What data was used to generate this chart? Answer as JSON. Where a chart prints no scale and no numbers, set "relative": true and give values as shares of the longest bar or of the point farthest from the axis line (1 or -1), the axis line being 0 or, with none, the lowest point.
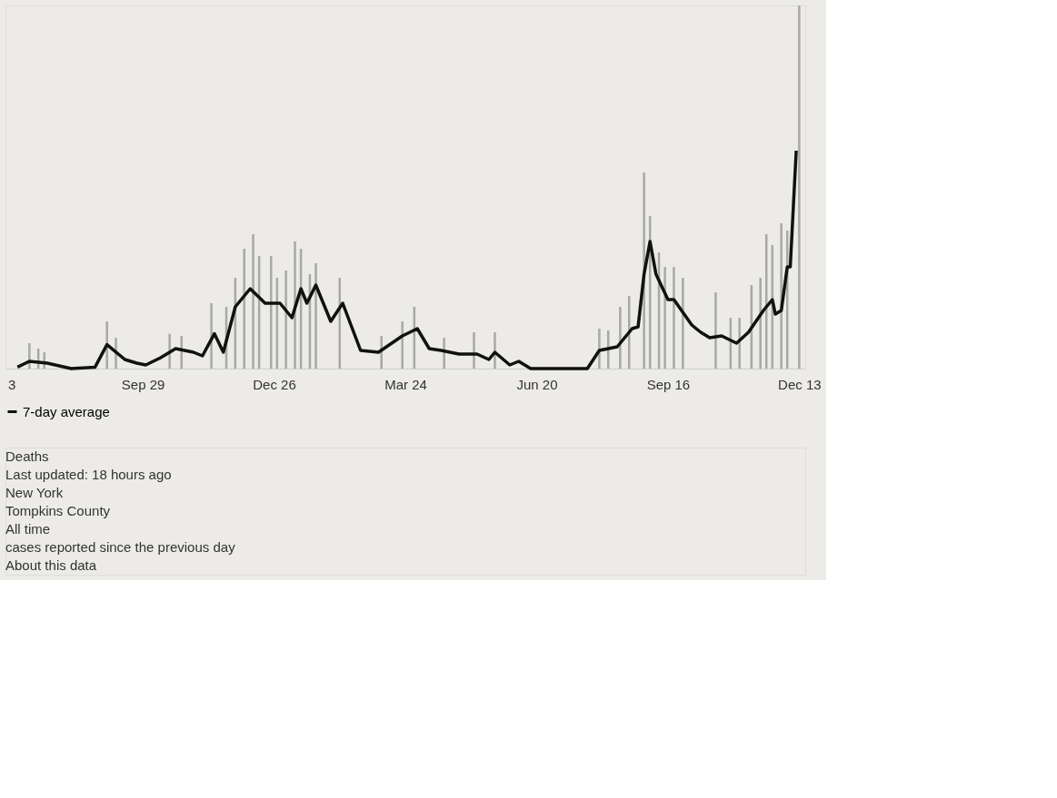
{
  "chart_data": {
    "type": "bar",
    "relative": true,
    "categories": [
      "3",
      null,
      null,
      null,
      null,
      null,
      null,
      null,
      null,
      null,
      null,
      null,
      null,
      null,
      null,
      null,
      null,
      null,
      null,
      null,
      null,
      null,
      null,
      null,
      null,
      null,
      null,
      null,
      null,
      null,
      null,
      null,
      null,
      null,
      null,
      null,
      null,
      null,
      null,
      null,
      null,
      null,
      null,
      null,
      "Sep 29",
      null,
      null,
      null,
      null,
      null,
      null,
      null,
      null,
      null,
      null,
      null,
      null,
      null,
      null,
      null,
      null,
      null,
      null,
      null,
      null,
      null,
      null,
      null,
      null,
      null,
      null,
      null,
      null,
      null,
      null,
      null,
      null,
      null,
      null,
      null,
      null,
      null,
      null,
      null,
      null,
      null,
      null,
      null,
      "Dec 26",
      null,
      null,
      null,
      null,
      null,
      null,
      null,
      null,
      null,
      null,
      null,
      null,
      null,
      null,
      null,
      null,
      null,
      null,
      null,
      null,
      null,
      null,
      null,
      null,
      null,
      null,
      null,
      null,
      null,
      null,
      null,
      null,
      null,
      null,
      null,
      null,
      null,
      null,
      null,
      null,
      null,
      null,
      null,
      "Mar 24",
      null,
      null,
      null,
      null,
      null,
      null,
      null,
      null,
      null,
      null,
      null,
      null,
      null,
      null,
      null,
      null,
      null,
      null,
      null,
      null,
      null,
      null,
      null,
      null,
      null,
      null,
      null,
      null,
      null,
      null,
      null,
      null,
      null,
      null,
      null,
      null,
      null,
      null,
      null,
      null,
      null,
      null,
      null,
      "Jun 20",
      null,
      null,
      null,
      null,
      null,
      null,
      null,
      null,
      null,
      null,
      null,
      null,
      null,
      null,
      null,
      null,
      null,
      null,
      null,
      null,
      null,
      null,
      null,
      null,
      null,
      null,
      null,
      null,
      null,
      null,
      null,
      null,
      null,
      null,
      null,
      null,
      null,
      null,
      null,
      null,
      null,
      null,
      null,
      "Sep 16",
      null,
      null,
      null,
      null,
      null,
      null,
      null,
      null,
      null,
      null,
      null,
      null,
      null,
      null,
      null,
      null,
      null,
      null,
      null,
      null,
      null,
      null,
      null,
      null,
      null,
      null,
      null,
      null,
      null,
      null,
      null,
      null,
      null,
      null,
      null,
      null,
      null,
      null,
      null,
      null,
      null,
      null,
      null,
      "Dec 13"
    ],
    "series": [
      {
        "color": "#a8a8a4",
        "values": [
          null,
          null,
          null,
          null,
          null,
          null,
          0.07,
          null,
          null,
          0.055,
          null,
          0.045,
          null,
          null,
          null,
          null,
          null,
          null,
          null,
          null,
          null,
          null,
          null,
          null,
          null,
          null,
          null,
          null,
          null,
          null,
          null,
          null,
          0.13,
          null,
          null,
          0.085,
          null,
          null,
          null,
          null,
          null,
          null,
          null,
          null,
          null,
          null,
          null,
          null,
          null,
          null,
          null,
          null,
          null,
          0.096,
          null,
          null,
          null,
          0.09,
          null,
          null,
          null,
          null,
          null,
          null,
          null,
          null,
          null,
          0.18,
          null,
          null,
          null,
          null,
          0.17,
          null,
          null,
          0.25,
          null,
          null,
          0.33,
          null,
          null,
          0.37,
          null,
          0.31,
          null,
          null,
          null,
          0.31,
          null,
          0.25,
          null,
          null,
          0.27,
          null,
          null,
          0.35,
          null,
          0.33,
          null,
          null,
          0.26,
          null,
          0.29,
          null,
          null,
          null,
          null,
          null,
          null,
          null,
          0.25,
          null,
          null,
          null,
          null,
          null,
          null,
          null,
          null,
          null,
          null,
          null,
          null,
          null,
          0.09,
          null,
          null,
          null,
          null,
          null,
          null,
          0.13,
          null,
          null,
          null,
          0.17,
          null,
          null,
          null,
          null,
          null,
          null,
          null,
          null,
          null,
          0.085,
          null,
          null,
          null,
          null,
          null,
          null,
          null,
          null,
          null,
          0.1,
          null,
          null,
          null,
          null,
          null,
          null,
          0.1,
          null,
          null,
          null,
          null,
          null,
          null,
          null,
          null,
          null,
          null,
          null,
          null,
          null,
          null,
          null,
          null,
          null,
          null,
          null,
          null,
          null,
          null,
          null,
          null,
          null,
          null,
          null,
          null,
          null,
          null,
          null,
          null,
          null,
          null,
          0.11,
          null,
          null,
          0.105,
          null,
          null,
          null,
          0.17,
          null,
          null,
          0.2,
          null,
          null,
          null,
          null,
          0.54,
          null,
          0.42,
          null,
          null,
          0.32,
          null,
          0.28,
          null,
          null,
          0.28,
          null,
          null,
          0.25,
          null,
          null,
          null,
          null,
          null,
          null,
          null,
          null,
          null,
          null,
          0.21,
          null,
          null,
          null,
          null,
          0.14,
          null,
          null,
          0.14,
          null,
          null,
          null,
          0.23,
          null,
          null,
          0.25,
          null,
          0.37,
          null,
          0.34,
          null,
          null,
          0.4,
          null,
          0.38,
          null,
          null,
          null,
          1.0
        ]
      },
      {
        "type": "line",
        "name": "7-day average",
        "color": "#111111",
        "values": [
          null,
          null,
          0.004,
          null,
          null,
          null,
          0.02,
          null,
          null,
          null,
          null,
          null,
          0.015,
          null,
          null,
          null,
          null,
          null,
          null,
          null,
          0.0,
          null,
          null,
          null,
          null,
          null,
          null,
          null,
          0.004,
          null,
          null,
          null,
          0.066,
          null,
          null,
          null,
          null,
          null,
          0.025,
          null,
          null,
          null,
          0.015,
          null,
          null,
          0.01,
          null,
          null,
          null,
          null,
          0.03,
          null,
          null,
          null,
          null,
          0.055,
          null,
          null,
          null,
          null,
          null,
          0.045,
          null,
          null,
          0.035,
          null,
          null,
          null,
          0.096,
          null,
          null,
          0.045,
          null,
          null,
          null,
          0.17,
          null,
          null,
          null,
          null,
          0.22,
          null,
          null,
          null,
          null,
          0.18,
          null,
          null,
          null,
          null,
          0.18,
          null,
          null,
          null,
          0.14,
          null,
          null,
          0.22,
          null,
          0.18,
          null,
          null,
          0.23,
          null,
          null,
          null,
          null,
          0.13,
          null,
          null,
          null,
          0.18,
          null,
          null,
          null,
          null,
          null,
          0.05,
          null,
          null,
          null,
          null,
          null,
          0.045,
          null,
          null,
          null,
          null,
          null,
          null,
          null,
          0.09,
          null,
          null,
          null,
          null,
          0.11,
          null,
          null,
          null,
          0.055,
          null,
          null,
          null,
          0.05,
          null,
          null,
          null,
          null,
          null,
          0.04,
          null,
          null,
          null,
          null,
          null,
          0.04,
          null,
          null,
          null,
          0.025,
          null,
          0.045,
          null,
          null,
          null,
          null,
          0.01,
          null,
          null,
          0.02,
          null,
          null,
          null,
          0.0,
          null,
          null,
          null,
          null,
          null,
          null,
          null,
          null,
          0.0,
          null,
          null,
          null,
          null,
          null,
          null,
          null,
          null,
          null,
          0.0,
          null,
          null,
          null,
          0.05,
          null,
          null,
          null,
          null,
          null,
          0.06,
          null,
          null,
          null,
          null,
          0.11,
          null,
          0.115,
          null,
          0.26,
          null,
          0.35,
          null,
          0.26,
          null,
          null,
          null,
          0.19,
          null,
          0.19,
          null,
          null,
          null,
          null,
          null,
          0.12,
          null,
          null,
          0.1,
          null,
          null,
          0.085,
          null,
          null,
          null,
          0.09,
          null,
          null,
          null,
          null,
          0.07,
          null,
          null,
          null,
          0.1,
          null,
          null,
          null,
          null,
          0.16,
          null,
          null,
          0.19,
          0.15,
          null,
          0.16,
          null,
          0.28,
          0.28,
          null,
          0.6,
          null
        ]
      }
    ],
    "legend": "bottom left",
    "line_style": "solid",
    "annotations": [
      "Deaths",
      "Last updated: 18 hours ago",
      "New York",
      "Tompkins County",
      "All time",
      "cases reported since the previous day",
      "About this data"
    ]
  }
}
